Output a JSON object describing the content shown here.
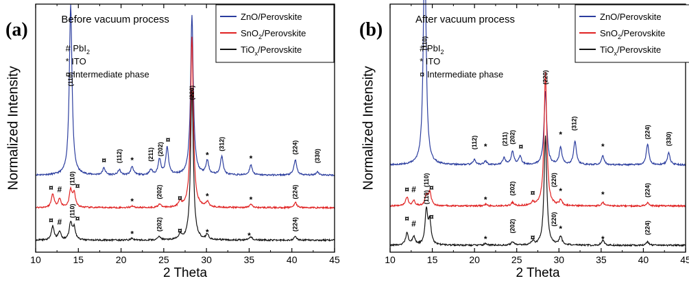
{
  "colors": {
    "zno": "#2b3d9e",
    "sno2": "#e02020",
    "tiox": "#111111"
  },
  "legend_items": [
    {
      "key": "zno",
      "label": "ZnO/Perovskite",
      "sub": "",
      "tail": ""
    },
    {
      "key": "sno2",
      "label": "SnO",
      "sub": "2",
      "tail": "/Perovskite"
    },
    {
      "key": "tiox",
      "label": "TiO",
      "sub": "x",
      "tail": "/Perovskite"
    }
  ],
  "annotation_lines": [
    {
      "main": "# PbI",
      "sub": "2"
    },
    {
      "main": "* ITO",
      "sub": ""
    },
    {
      "main": "¤ Intermediate phase",
      "sub": ""
    }
  ],
  "chart_data": [
    {
      "type": "line",
      "panel_label": "(a)",
      "title": "Before vacuum process",
      "xlabel": "2 Theta",
      "ylabel": "Normalized Intensity",
      "xlim": [
        10,
        45
      ],
      "xticks": [
        10,
        15,
        20,
        25,
        30,
        35,
        40,
        45
      ],
      "legend_position": "top-right",
      "series": [
        {
          "key": "zno",
          "name": "ZnO/Perovskite",
          "baseline": 0.45,
          "peaks": [
            [
              14.1,
              1.0
            ],
            [
              18.0,
              0.04
            ],
            [
              19.8,
              0.03
            ],
            [
              21.3,
              0.05
            ],
            [
              23.5,
              0.03
            ],
            [
              24.5,
              0.09
            ],
            [
              25.4,
              0.16
            ],
            [
              28.3,
              0.93
            ],
            [
              30.1,
              0.08
            ],
            [
              31.8,
              0.11
            ],
            [
              35.2,
              0.06
            ],
            [
              40.4,
              0.09
            ],
            [
              43.0,
              0.02
            ]
          ]
        },
        {
          "key": "sno2",
          "name": "SnO2/Perovskite",
          "baseline": 0.26,
          "peaks": [
            [
              12.0,
              0.08
            ],
            [
              12.8,
              0.05
            ],
            [
              14.1,
              0.1
            ],
            [
              14.5,
              0.08
            ],
            [
              21.3,
              0.01
            ],
            [
              24.5,
              0.02
            ],
            [
              26.9,
              0.03
            ],
            [
              28.3,
              1.0
            ],
            [
              30.1,
              0.03
            ],
            [
              35.2,
              0.02
            ],
            [
              40.4,
              0.03
            ]
          ]
        },
        {
          "key": "tiox",
          "name": "TiOx/Perovskite",
          "baseline": 0.07,
          "peaks": [
            [
              12.0,
              0.08
            ],
            [
              12.8,
              0.05
            ],
            [
              14.1,
              0.1
            ],
            [
              14.5,
              0.07
            ],
            [
              21.3,
              0.01
            ],
            [
              24.5,
              0.02
            ],
            [
              26.9,
              0.03
            ],
            [
              28.3,
              0.89
            ],
            [
              30.1,
              0.03
            ],
            [
              35.2,
              0.02
            ],
            [
              40.4,
              0.02
            ]
          ]
        }
      ],
      "peak_labels": [
        {
          "text": "(110)",
          "x": 14.1,
          "y": 0.97
        },
        {
          "text": "(112)",
          "x": 19.8,
          "y": 0.52
        },
        {
          "text": "(211)",
          "x": 23.5,
          "y": 0.53
        },
        {
          "text": "(202)",
          "x": 24.6,
          "y": 0.56
        },
        {
          "text": "(220)",
          "x": 28.3,
          "y": 0.89
        },
        {
          "text": "(312)",
          "x": 31.8,
          "y": 0.59
        },
        {
          "text": "(224)",
          "x": 40.4,
          "y": 0.57
        },
        {
          "text": "(330)",
          "x": 43.0,
          "y": 0.52
        },
        {
          "text": "(110)",
          "x": 14.3,
          "y": 0.39
        },
        {
          "text": "(202)",
          "x": 24.5,
          "y": 0.31
        },
        {
          "text": "(224)",
          "x": 40.4,
          "y": 0.31
        },
        {
          "text": "(110)",
          "x": 14.3,
          "y": 0.2
        },
        {
          "text": "(202)",
          "x": 24.5,
          "y": 0.12
        },
        {
          "text": "(224)",
          "x": 40.4,
          "y": 0.12
        }
      ],
      "markers": [
        {
          "text": "¤",
          "x": 18.0,
          "y": 0.52
        },
        {
          "text": "*",
          "x": 21.3,
          "y": 0.52
        },
        {
          "text": "¤",
          "x": 25.5,
          "y": 0.64
        },
        {
          "text": "*",
          "x": 30.1,
          "y": 0.55
        },
        {
          "text": "*",
          "x": 35.2,
          "y": 0.53
        },
        {
          "text": "¤",
          "x": 11.8,
          "y": 0.36
        },
        {
          "text": "#",
          "x": 12.8,
          "y": 0.35
        },
        {
          "text": "¤",
          "x": 14.9,
          "y": 0.37
        },
        {
          "text": "*",
          "x": 21.3,
          "y": 0.28
        },
        {
          "text": "¤",
          "x": 26.9,
          "y": 0.3
        },
        {
          "text": "*",
          "x": 30.1,
          "y": 0.31
        },
        {
          "text": "*",
          "x": 35.2,
          "y": 0.29
        },
        {
          "text": "¤",
          "x": 11.8,
          "y": 0.17
        },
        {
          "text": "#",
          "x": 12.8,
          "y": 0.16
        },
        {
          "text": "¤",
          "x": 14.9,
          "y": 0.18
        },
        {
          "text": "*",
          "x": 21.3,
          "y": 0.09
        },
        {
          "text": "¤",
          "x": 26.9,
          "y": 0.11
        },
        {
          "text": "*",
          "x": 30.1,
          "y": 0.1
        },
        {
          "text": "*",
          "x": 35.0,
          "y": 0.08
        }
      ]
    },
    {
      "type": "line",
      "panel_label": "(b)",
      "title": "After vacuum process",
      "xlabel": "2 Theta",
      "ylabel": "Normalized Intensity",
      "xlim": [
        10,
        45
      ],
      "xticks": [
        10,
        15,
        20,
        25,
        30,
        35,
        40,
        45
      ],
      "legend_position": "top-right",
      "series": [
        {
          "key": "zno",
          "name": "ZnO/Perovskite",
          "baseline": 0.51,
          "peaks": [
            [
              14.1,
              1.34
            ],
            [
              20.0,
              0.03
            ],
            [
              21.3,
              0.02
            ],
            [
              23.5,
              0.04
            ],
            [
              24.5,
              0.08
            ],
            [
              25.4,
              0.05
            ],
            [
              28.4,
              0.43
            ],
            [
              30.2,
              0.1
            ],
            [
              31.9,
              0.14
            ],
            [
              35.2,
              0.05
            ],
            [
              40.5,
              0.12
            ],
            [
              43.0,
              0.07
            ]
          ]
        },
        {
          "key": "sno2",
          "name": "SnO2/Perovskite",
          "baseline": 0.27,
          "peaks": [
            [
              12.0,
              0.05
            ],
            [
              12.8,
              0.03
            ],
            [
              14.3,
              0.06
            ],
            [
              14.7,
              0.08
            ],
            [
              21.3,
              0.01
            ],
            [
              24.5,
              0.02
            ],
            [
              26.9,
              0.02
            ],
            [
              28.4,
              0.78
            ],
            [
              30.2,
              0.03
            ],
            [
              35.2,
              0.02
            ],
            [
              40.5,
              0.02
            ]
          ]
        },
        {
          "key": "tiox",
          "name": "TiOx/Perovskite",
          "baseline": 0.04,
          "peaks": [
            [
              12.0,
              0.07
            ],
            [
              12.8,
              0.05
            ],
            [
              14.3,
              0.2
            ],
            [
              14.7,
              0.13
            ],
            [
              21.3,
              0.01
            ],
            [
              24.5,
              0.02
            ],
            [
              26.9,
              0.02
            ],
            [
              28.4,
              0.64
            ],
            [
              30.2,
              0.05
            ],
            [
              35.2,
              0.03
            ],
            [
              40.5,
              0.02
            ]
          ]
        }
      ],
      "peak_labels": [
        {
          "text": "(110)",
          "x": 14.1,
          "y": 1.18
        },
        {
          "text": "(112)",
          "x": 20.0,
          "y": 0.6
        },
        {
          "text": "(211)",
          "x": 23.6,
          "y": 0.62
        },
        {
          "text": "(202)",
          "x": 24.5,
          "y": 0.63
        },
        {
          "text": "(220)",
          "x": 28.4,
          "y": 0.98
        },
        {
          "text": "(312)",
          "x": 31.8,
          "y": 0.71
        },
        {
          "text": "(224)",
          "x": 40.5,
          "y": 0.66
        },
        {
          "text": "(330)",
          "x": 43.0,
          "y": 0.62
        },
        {
          "text": "(110)",
          "x": 14.3,
          "y": 0.38
        },
        {
          "text": "(202)",
          "x": 24.5,
          "y": 0.33
        },
        {
          "text": "(220)",
          "x": 29.4,
          "y": 0.38
        },
        {
          "text": "(224)",
          "x": 40.5,
          "y": 0.32
        },
        {
          "text": "(110)",
          "x": 14.3,
          "y": 0.28
        },
        {
          "text": "(202)",
          "x": 24.5,
          "y": 0.11
        },
        {
          "text": "(220)",
          "x": 29.4,
          "y": 0.15
        },
        {
          "text": "(224)",
          "x": 40.5,
          "y": 0.1
        }
      ],
      "markers": [
        {
          "text": "*",
          "x": 21.3,
          "y": 0.6
        },
        {
          "text": "¤",
          "x": 25.5,
          "y": 0.6
        },
        {
          "text": "*",
          "x": 30.2,
          "y": 0.67
        },
        {
          "text": "*",
          "x": 35.2,
          "y": 0.6
        },
        {
          "text": "¤",
          "x": 12.0,
          "y": 0.35
        },
        {
          "text": "#",
          "x": 12.8,
          "y": 0.35
        },
        {
          "text": "¤",
          "x": 14.9,
          "y": 0.36
        },
        {
          "text": "*",
          "x": 21.3,
          "y": 0.29
        },
        {
          "text": "¤",
          "x": 26.9,
          "y": 0.33
        },
        {
          "text": "*",
          "x": 30.2,
          "y": 0.34
        },
        {
          "text": "*",
          "x": 35.2,
          "y": 0.32
        },
        {
          "text": "¤",
          "x": 12.0,
          "y": 0.18
        },
        {
          "text": "#",
          "x": 12.8,
          "y": 0.15
        },
        {
          "text": "¤",
          "x": 14.9,
          "y": 0.19
        },
        {
          "text": "*",
          "x": 21.3,
          "y": 0.06
        },
        {
          "text": "¤",
          "x": 26.9,
          "y": 0.07
        },
        {
          "text": "*",
          "x": 30.2,
          "y": 0.12
        },
        {
          "text": "*",
          "x": 35.2,
          "y": 0.06
        }
      ]
    }
  ]
}
